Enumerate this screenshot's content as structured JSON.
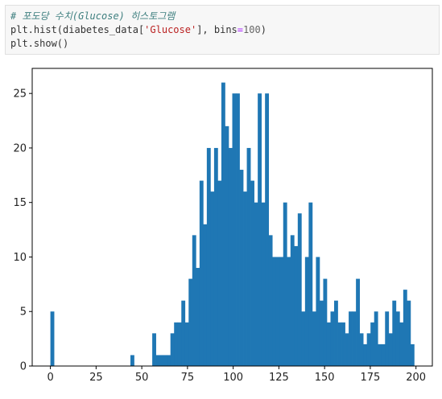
{
  "code": {
    "comment": "# 포도당 수치(Glucose) 히스토그램",
    "line2_pre": "plt.hist(diabetes_data[",
    "line2_str": "'Glucose'",
    "line2_mid": "], bins",
    "line2_eq": "=",
    "line2_num": "100",
    "line2_post": ")",
    "line3": "plt.show()"
  },
  "chart_data": {
    "type": "bar",
    "subtype": "histogram",
    "bins": 100,
    "bin_range": [
      0,
      199
    ],
    "color": "#1f77b4",
    "xlim": [
      -9.95,
      208.95
    ],
    "ylim": [
      0,
      27.3
    ],
    "xticks": [
      0,
      25,
      50,
      75,
      100,
      125,
      150,
      175,
      200
    ],
    "yticks": [
      0,
      5,
      10,
      15,
      20,
      25
    ],
    "counts": [
      5,
      0,
      0,
      0,
      0,
      0,
      0,
      0,
      0,
      0,
      0,
      0,
      0,
      0,
      0,
      0,
      0,
      0,
      0,
      0,
      0,
      0,
      1,
      0,
      0,
      0,
      0,
      0,
      3,
      1,
      1,
      1,
      1,
      3,
      4,
      4,
      6,
      4,
      8,
      12,
      9,
      17,
      13,
      20,
      16,
      20,
      17,
      26,
      22,
      20,
      25,
      25,
      18,
      16,
      20,
      17,
      15,
      25,
      15,
      25,
      12,
      10,
      10,
      10,
      15,
      10,
      12,
      11,
      14,
      5,
      10,
      15,
      5,
      10,
      6,
      8,
      4,
      5,
      6,
      4,
      4,
      3,
      5,
      5,
      8,
      3,
      2,
      3,
      4,
      5,
      2,
      2,
      5,
      3,
      6,
      5,
      4,
      7,
      6,
      2
    ]
  }
}
